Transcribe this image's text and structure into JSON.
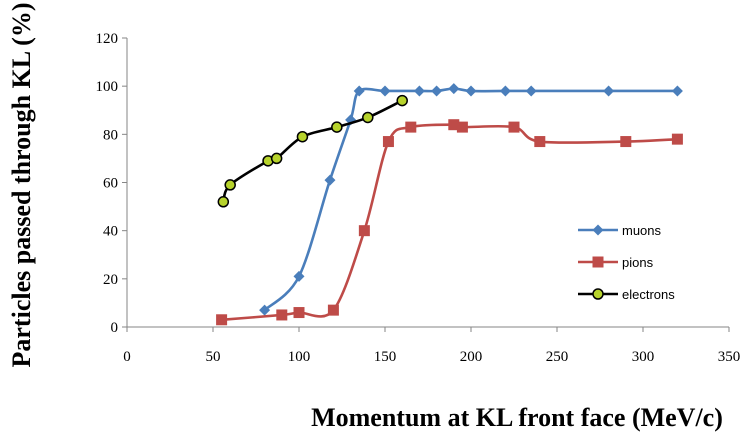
{
  "chart_data": {
    "type": "line",
    "title": "",
    "xlabel": "Momentum at KL front face (MeV/c)",
    "ylabel": "Particles passed through KL (%)",
    "xlim": [
      0,
      350
    ],
    "ylim": [
      0,
      120
    ],
    "xticks": [
      0,
      50,
      100,
      150,
      200,
      250,
      300,
      350
    ],
    "yticks": [
      0,
      20,
      40,
      60,
      80,
      100,
      120
    ],
    "grid": false,
    "legend_position": "right",
    "series": [
      {
        "name": "muons",
        "color": "#4a7ebb",
        "marker": "diamond",
        "x": [
          80,
          100,
          118,
          130,
          135,
          150,
          170,
          180,
          190,
          200,
          220,
          235,
          280,
          320
        ],
        "y": [
          7,
          21,
          61,
          86,
          98,
          98,
          98,
          98,
          99,
          98,
          98,
          98,
          98,
          98
        ]
      },
      {
        "name": "pions",
        "color": "#be4b48",
        "marker": "square",
        "x": [
          55,
          90,
          100,
          120,
          138,
          152,
          165,
          190,
          195,
          225,
          240,
          290,
          320
        ],
        "y": [
          3,
          5,
          6,
          7,
          40,
          77,
          83,
          84,
          83,
          83,
          77,
          77,
          78
        ]
      },
      {
        "name": "electrons",
        "color": "#000000",
        "marker": "circle",
        "marker_fill": "#b7d32c",
        "x": [
          56,
          60,
          82,
          87,
          102,
          122,
          140,
          160
        ],
        "y": [
          52,
          59,
          69,
          70,
          79,
          83,
          87,
          94
        ]
      }
    ]
  }
}
